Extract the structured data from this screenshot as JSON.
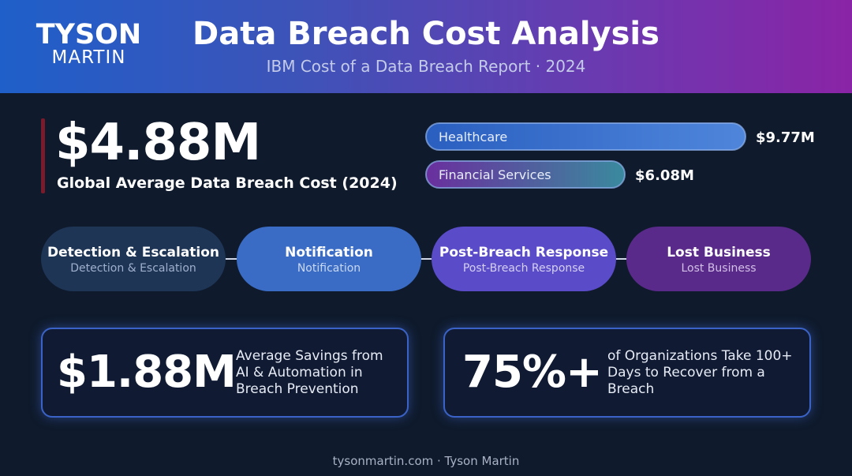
{
  "logo": {
    "top": "TYSON",
    "bottom": "MARTIN"
  },
  "title": "Data Breach Cost Analysis",
  "subtitle": "IBM Cost of a Data Breach Report · 2024",
  "hero": {
    "value": "$4.88M",
    "label": "Global Average Data Breach Cost (2024)",
    "accent": "#7a1a2a"
  },
  "colors": {
    "header_start": "#1f5fc9",
    "header_end": "#8a24a6",
    "background": "#0f1a2c",
    "card_border": "#3b63c7"
  },
  "chart_data": {
    "type": "bar",
    "categories": [
      "Healthcare",
      "Financial Services"
    ],
    "values": [
      9.77,
      6.08
    ],
    "value_labels": [
      "$9.77M",
      "$6.08M"
    ],
    "colors": [
      "#3f7ad6",
      "#7a3ab3"
    ],
    "xlim": [
      0,
      9.77
    ],
    "title": "",
    "xlabel": "",
    "ylabel": ""
  },
  "stages": [
    {
      "title": "Detection & Escalation",
      "sub": "Detection & Escalation",
      "color": "#1e3556",
      "sub_color": "#9fb0cc"
    },
    {
      "title": "Notification",
      "sub": "Notification",
      "color": "#3a6cc6",
      "sub_color": "#c9d8f2"
    },
    {
      "title": "Post-Breach Response",
      "sub": "Post-Breach Response",
      "color": "#5a4bc8",
      "sub_color": "#d5d0f2"
    },
    {
      "title": "Lost Business",
      "sub": "Lost Business",
      "color": "#5a2a8a",
      "sub_color": "#d2bfe6"
    }
  ],
  "stats": [
    {
      "value": "$1.88M",
      "desc_lines": [
        "Average Savings from",
        "AI & Automation in",
        "Breach Prevention"
      ]
    },
    {
      "value": "75%+",
      "desc_lines": [
        "of Organizations Take 100+",
        "Days to Recover from a",
        "Breach"
      ]
    }
  ],
  "footer": "tysonmartin.com · Tyson Martin"
}
